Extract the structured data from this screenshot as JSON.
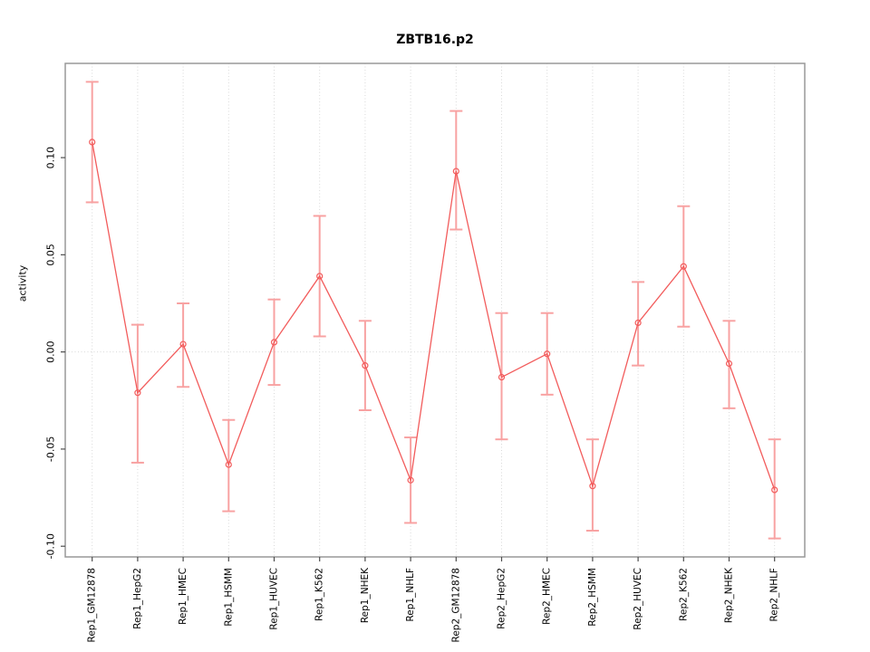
{
  "chart_data": {
    "type": "line",
    "title": "ZBTB16.p2",
    "xlabel": "",
    "ylabel": "activity",
    "categories": [
      "Rep1_GM12878",
      "Rep1_HepG2",
      "Rep1_HMEC",
      "Rep1_HSMM",
      "Rep1_HUVEC",
      "Rep1_K562",
      "Rep1_NHEK",
      "Rep1_NHLF",
      "Rep2_GM12878",
      "Rep2_HepG2",
      "Rep2_HMEC",
      "Rep2_HSMM",
      "Rep2_HUVEC",
      "Rep2_K562",
      "Rep2_NHEK",
      "Rep2_NHLF"
    ],
    "series": [
      {
        "name": "activity",
        "values": [
          0.108,
          -0.021,
          0.004,
          -0.058,
          0.005,
          0.039,
          -0.007,
          -0.066,
          0.093,
          -0.013,
          -0.001,
          -0.069,
          0.015,
          0.044,
          -0.006,
          -0.071
        ],
        "ci_low": [
          0.077,
          -0.057,
          -0.018,
          -0.082,
          -0.017,
          0.008,
          -0.03,
          -0.088,
          0.063,
          -0.045,
          -0.022,
          -0.092,
          -0.007,
          0.013,
          -0.029,
          -0.096
        ],
        "ci_high": [
          0.139,
          0.014,
          0.025,
          -0.035,
          0.027,
          0.07,
          0.016,
          -0.044,
          0.124,
          0.02,
          0.02,
          -0.045,
          0.036,
          0.075,
          0.016,
          -0.045
        ]
      }
    ],
    "yticks": [
      -0.1,
      -0.05,
      0.0,
      0.05,
      0.1
    ],
    "ylim": [
      -0.1055,
      0.1485
    ],
    "grid": {
      "vertical_dotted_per_category": true,
      "horizontal_dotted_at_zero": true
    },
    "legend": null,
    "marker": "open-circle",
    "colors": {
      "line": "#f25c5c",
      "marker": "#f25c5c",
      "error_bar": "#f8a2a2",
      "gridline": "#d9d9d9",
      "frame": "#999999",
      "tick": "#4d4d4d",
      "text": "#000000",
      "background": "#ffffff"
    }
  }
}
